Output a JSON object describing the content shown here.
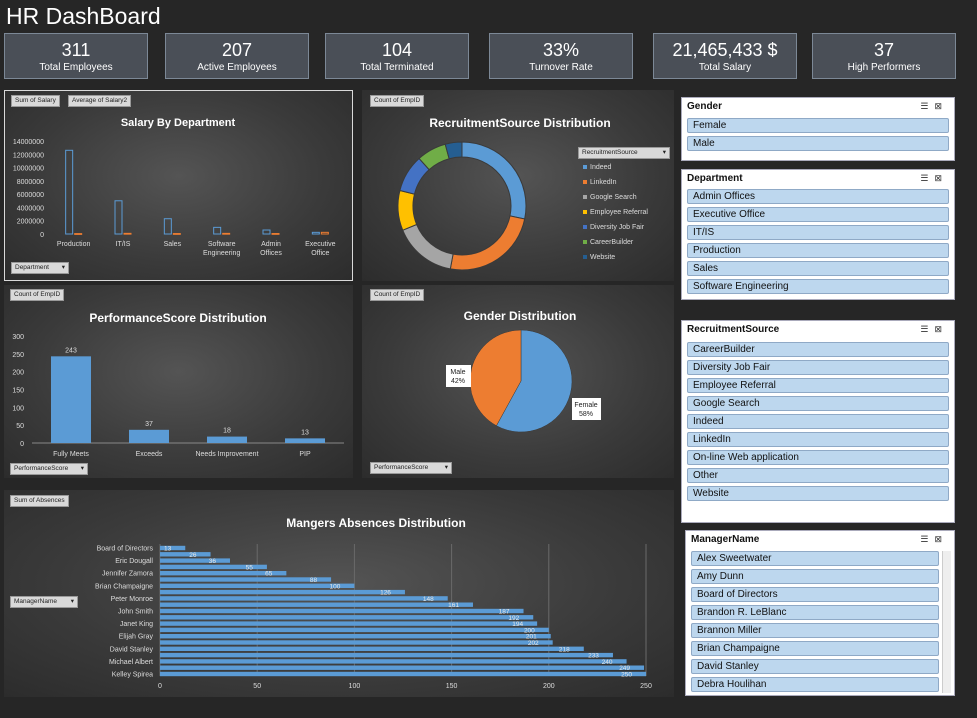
{
  "title": "HR DashBoard",
  "kpis": [
    {
      "value": "311",
      "label": "Total Employees"
    },
    {
      "value": "207",
      "label": "Active Employees"
    },
    {
      "value": "104",
      "label": "Total Terminated"
    },
    {
      "value": "33%",
      "label": "Turnover Rate"
    },
    {
      "value": "21,465,433 $",
      "label": "Total Salary"
    },
    {
      "value": "37",
      "label": "High Performers"
    }
  ],
  "salary_panel": {
    "field_buttons": [
      "Sum of Salary",
      "Average of Salary2"
    ],
    "axis_button": "Department"
  },
  "recruit_panel": {
    "field_button": "Count of EmpID",
    "legend_button": "RecruitmentSource"
  },
  "perf_panel": {
    "field_button": "Count of EmpID",
    "axis_button": "PerformanceScore"
  },
  "gender_panel": {
    "field_button": "Count of EmpID",
    "axis_button": "PerformanceScore"
  },
  "absence_panel": {
    "field_button": "Sum of Absences",
    "axis_button": "ManagerName"
  },
  "chart_data": [
    {
      "id": "salary",
      "type": "bar",
      "title": "Salary By Department",
      "categories": [
        "Production",
        "IT/IS",
        "Sales",
        "Software Engineering",
        "Admin Offices",
        "Executive Office"
      ],
      "series": [
        {
          "name": "Sum of Salary",
          "values": [
            12600000,
            5000000,
            2300000,
            1000000,
            600000,
            250000
          ]
        },
        {
          "name": "Average of Salary2",
          "values": [
            60000,
            98000,
            69000,
            95000,
            72000,
            250000
          ]
        }
      ],
      "ylim": [
        0,
        14000000
      ],
      "yticks": [
        "0",
        "2000000",
        "4000000",
        "6000000",
        "8000000",
        "10000000",
        "12000000",
        "14000000"
      ],
      "colors": [
        "#5b9bd5",
        "#ed7d31"
      ]
    },
    {
      "id": "recruit",
      "type": "pie",
      "title": "RecruitmentSource Distribution",
      "categories": [
        "Indeed",
        "LinkedIn",
        "Google Search",
        "Employee Referral",
        "Diversity Job Fair",
        "CareerBuilder",
        "Website"
      ],
      "values": [
        87,
        76,
        49,
        31,
        29,
        23,
        13
      ],
      "colors": [
        "#5b9bd5",
        "#ed7d31",
        "#a5a5a5",
        "#ffc000",
        "#4472c4",
        "#70ad47",
        "#255e91"
      ]
    },
    {
      "id": "perf",
      "type": "bar",
      "title": "PerformanceScore Distribution",
      "categories": [
        "Fully Meets",
        "Exceeds",
        "Needs Improvement",
        "PIP"
      ],
      "values": [
        243,
        37,
        18,
        13
      ],
      "ylim": [
        0,
        300
      ],
      "yticks": [
        "0",
        "50",
        "100",
        "150",
        "200",
        "250",
        "300"
      ],
      "colors": [
        "#5b9bd5"
      ]
    },
    {
      "id": "gender",
      "type": "pie",
      "title": "Gender Distribution",
      "categories": [
        "Female",
        "Male"
      ],
      "values": [
        58,
        42
      ],
      "data_labels": [
        "Female\n58%",
        "Male\n42%"
      ],
      "colors": [
        "#5b9bd5",
        "#ed7d31"
      ]
    },
    {
      "id": "absence",
      "type": "bar",
      "title": "Mangers Absences Distribution",
      "categories": [
        "Board of Directors",
        "",
        "Eric Dougall",
        "",
        "Jennifer Zamora",
        "",
        "Brian Champaigne",
        "",
        "Peter Monroe",
        "",
        "John Smith",
        "",
        "Janet King",
        "",
        "Elijah Gray",
        "",
        "David Stanley",
        "",
        "Michael Albert",
        "",
        "Kelley Spirea"
      ],
      "values": [
        13,
        26,
        36,
        55,
        65,
        88,
        100,
        126,
        148,
        161,
        187,
        192,
        194,
        200,
        201,
        202,
        218,
        233,
        240,
        249,
        250
      ],
      "xlim": [
        0,
        250
      ],
      "xticks": [
        "0",
        "50",
        "100",
        "150",
        "200",
        "250"
      ],
      "colors": [
        "#5b9bd5"
      ]
    }
  ],
  "slicers": {
    "gender": {
      "title": "Gender",
      "items": [
        "Female",
        "Male"
      ]
    },
    "department": {
      "title": "Department",
      "items": [
        "Admin Offices",
        "Executive Office",
        "IT/IS",
        "Production",
        "Sales",
        "Software Engineering"
      ]
    },
    "recruitment": {
      "title": "RecruitmentSource",
      "items": [
        "CareerBuilder",
        "Diversity Job Fair",
        "Employee Referral",
        "Google Search",
        "Indeed",
        "LinkedIn",
        "On-line Web application",
        "Other",
        "Website"
      ]
    },
    "manager": {
      "title": "ManagerName",
      "items": [
        "Alex Sweetwater",
        "Amy Dunn",
        "Board of Directors",
        "Brandon R. LeBlanc",
        "Brannon Miller",
        "Brian Champaigne",
        "David Stanley",
        "Debra Houlihan"
      ]
    }
  }
}
